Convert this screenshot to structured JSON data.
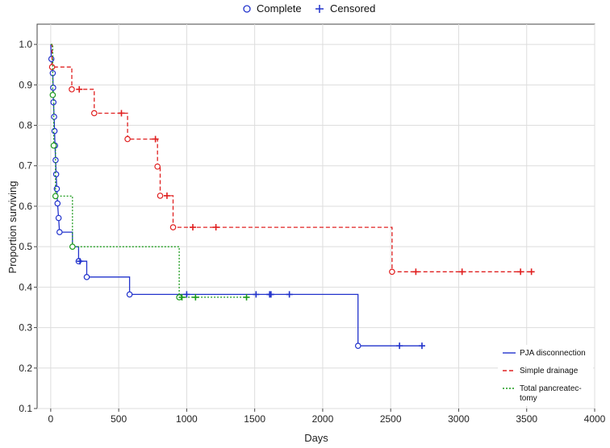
{
  "chart_data": {
    "type": "line",
    "step": true,
    "xlabel": "Days",
    "ylabel": "Proportion surviving",
    "xlim": [
      -100,
      4000
    ],
    "ylim": [
      0.1,
      1.05
    ],
    "xticks": [
      0,
      500,
      1000,
      1500,
      2000,
      2500,
      3000,
      3500,
      4000
    ],
    "yticks": [
      0.1,
      0.2,
      0.3,
      0.4,
      0.5,
      0.6,
      0.7,
      0.8,
      0.9,
      1.0
    ],
    "grid": true,
    "marker_legend": {
      "position": "top-center",
      "complete_label": "Complete",
      "censored_label": "Censored"
    },
    "series_legend": {
      "position": "bottom-right",
      "entries": [
        {
          "lines": [
            "PJA disconnection"
          ],
          "color": "#2233cc",
          "dash": "solid"
        },
        {
          "lines": [
            "Simple drainage"
          ],
          "color": "#e02020",
          "dash": "dashed"
        },
        {
          "lines": [
            "Total pancreatec-",
            "tomy"
          ],
          "color": "#1a9a1a",
          "dash": "dotted"
        }
      ]
    },
    "series": [
      {
        "name": "PJA disconnection",
        "color": "#2233cc",
        "dash": "solid",
        "curve": [
          [
            0,
            1.0
          ],
          [
            5,
            0.964
          ],
          [
            15,
            0.929
          ],
          [
            18,
            0.893
          ],
          [
            20,
            0.857
          ],
          [
            25,
            0.821
          ],
          [
            28,
            0.786
          ],
          [
            32,
            0.75
          ],
          [
            36,
            0.714
          ],
          [
            40,
            0.679
          ],
          [
            45,
            0.643
          ],
          [
            50,
            0.607
          ],
          [
            58,
            0.571
          ],
          [
            65,
            0.536
          ],
          [
            160,
            0.536
          ],
          [
            160,
            0.5
          ],
          [
            205,
            0.5
          ],
          [
            205,
            0.464
          ],
          [
            265,
            0.464
          ],
          [
            265,
            0.425
          ],
          [
            580,
            0.425
          ],
          [
            580,
            0.382
          ],
          [
            2260,
            0.382
          ],
          [
            2260,
            0.255
          ],
          [
            2730,
            0.255
          ]
        ],
        "complete": [
          [
            5,
            0.964
          ],
          [
            15,
            0.929
          ],
          [
            18,
            0.893
          ],
          [
            20,
            0.857
          ],
          [
            25,
            0.821
          ],
          [
            28,
            0.786
          ],
          [
            32,
            0.75
          ],
          [
            36,
            0.714
          ],
          [
            40,
            0.679
          ],
          [
            45,
            0.643
          ],
          [
            50,
            0.607
          ],
          [
            58,
            0.571
          ],
          [
            65,
            0.536
          ],
          [
            205,
            0.464
          ],
          [
            265,
            0.425
          ],
          [
            580,
            0.382
          ],
          [
            2260,
            0.255
          ]
        ],
        "censored": [
          [
            215,
            0.464
          ],
          [
            1000,
            0.382
          ],
          [
            1510,
            0.382
          ],
          [
            1610,
            0.382
          ],
          [
            1620,
            0.382
          ],
          [
            1755,
            0.382
          ],
          [
            2565,
            0.255
          ],
          [
            2730,
            0.255
          ]
        ]
      },
      {
        "name": "Simple drainage",
        "color": "#e02020",
        "dash": "dashed",
        "curve": [
          [
            0,
            1.0
          ],
          [
            10,
            1.0
          ],
          [
            10,
            0.944
          ],
          [
            155,
            0.944
          ],
          [
            155,
            0.889
          ],
          [
            320,
            0.889
          ],
          [
            320,
            0.83
          ],
          [
            565,
            0.83
          ],
          [
            565,
            0.766
          ],
          [
            785,
            0.766
          ],
          [
            785,
            0.698
          ],
          [
            805,
            0.698
          ],
          [
            805,
            0.626
          ],
          [
            900,
            0.626
          ],
          [
            900,
            0.548
          ],
          [
            2510,
            0.548
          ],
          [
            2510,
            0.438
          ],
          [
            3535,
            0.438
          ]
        ],
        "complete": [
          [
            10,
            0.944
          ],
          [
            155,
            0.889
          ],
          [
            320,
            0.83
          ],
          [
            565,
            0.766
          ],
          [
            785,
            0.698
          ],
          [
            805,
            0.626
          ],
          [
            900,
            0.548
          ],
          [
            2510,
            0.438
          ]
        ],
        "censored": [
          [
            210,
            0.889
          ],
          [
            520,
            0.83
          ],
          [
            770,
            0.766
          ],
          [
            855,
            0.626
          ],
          [
            1045,
            0.548
          ],
          [
            1215,
            0.548
          ],
          [
            2685,
            0.438
          ],
          [
            3025,
            0.438
          ],
          [
            3455,
            0.438
          ],
          [
            3535,
            0.438
          ]
        ]
      },
      {
        "name": "Total pancreatectomy",
        "color": "#1a9a1a",
        "dash": "dotted",
        "curve": [
          [
            0,
            1.0
          ],
          [
            15,
            1.0
          ],
          [
            15,
            0.875
          ],
          [
            22,
            0.875
          ],
          [
            22,
            0.75
          ],
          [
            35,
            0.75
          ],
          [
            35,
            0.625
          ],
          [
            160,
            0.625
          ],
          [
            160,
            0.5
          ],
          [
            945,
            0.5
          ],
          [
            945,
            0.375
          ],
          [
            1440,
            0.375
          ]
        ],
        "complete": [
          [
            15,
            0.875
          ],
          [
            22,
            0.75
          ],
          [
            35,
            0.625
          ],
          [
            160,
            0.5
          ],
          [
            945,
            0.375
          ]
        ],
        "censored": [
          [
            965,
            0.375
          ],
          [
            1065,
            0.375
          ],
          [
            1440,
            0.375
          ]
        ]
      }
    ]
  }
}
